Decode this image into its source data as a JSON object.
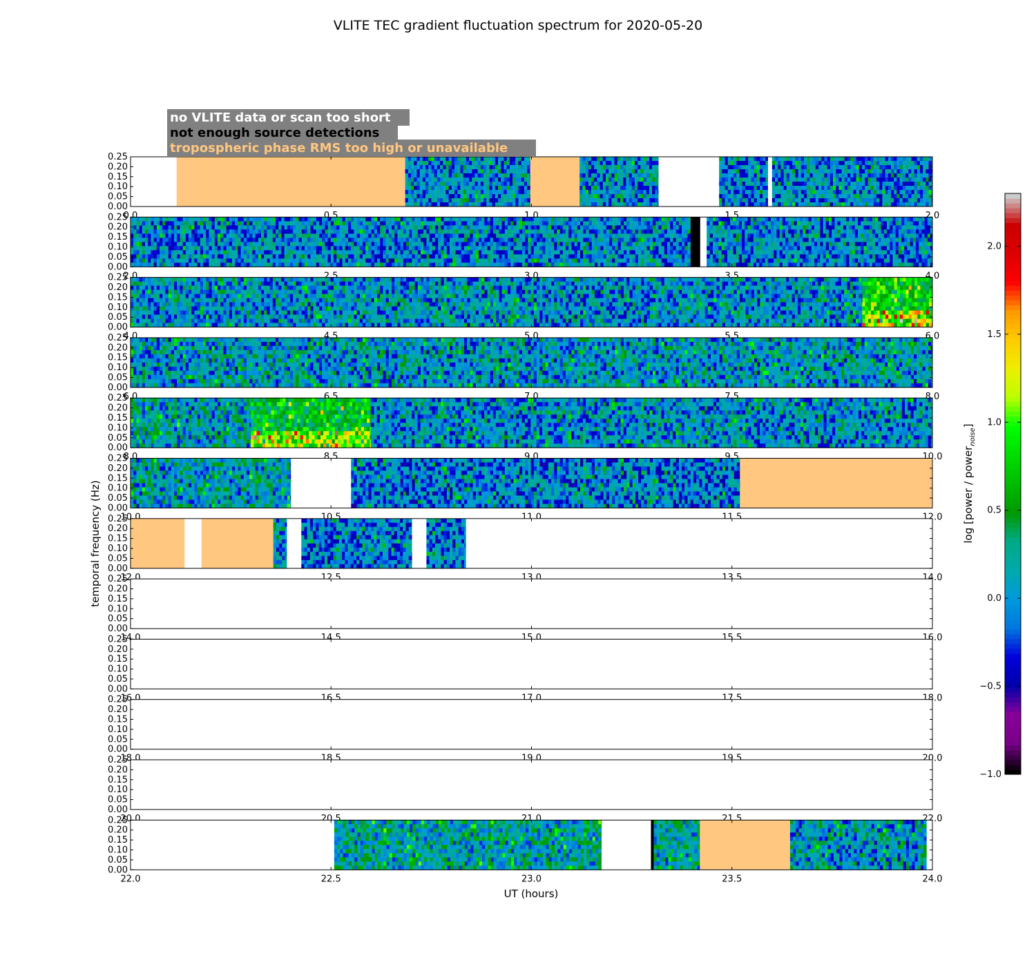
{
  "chart_data": {
    "type": "heatmap",
    "title": "VLITE TEC gradient fluctuation spectrum for 2020-05-20",
    "xlabel": "UT (hours)",
    "ylabel": "temporal frequency (Hz)",
    "ylim": [
      0,
      0.25
    ],
    "yticks": [
      "0.00",
      "0.05",
      "0.10",
      "0.15",
      "0.20",
      "0.25"
    ],
    "colorbar": {
      "label": "log [power / power",
      "label_subscript": "noise",
      "label_close": "]",
      "range": [
        -1.0,
        2.3
      ],
      "ticks": [
        "−1.0",
        "−0.5",
        "0.0",
        "0.5",
        "1.0",
        "1.5",
        "2.0"
      ],
      "tick_values": [
        -1.0,
        -0.5,
        0.0,
        0.5,
        1.0,
        1.5,
        2.0
      ],
      "colormap": "nipy_spectral"
    },
    "legend": [
      {
        "text": "no VLITE data or scan too short",
        "color": "#ffffff",
        "meaning": "white"
      },
      {
        "text": "not enough source detections",
        "color": "#000000",
        "meaning": "black"
      },
      {
        "text": "tropospheric phase RMS too high or unavailable",
        "color": "#ffc780",
        "meaning": "orange"
      }
    ],
    "colors": {
      "legend_bg": "#808080",
      "tropo": "#ffc780",
      "nodet": "#000000",
      "nodata": "#ffffff"
    },
    "panels": [
      {
        "xlim": [
          0,
          2
        ],
        "xticks": [
          "0.0",
          "0.5",
          "1.0",
          "1.5",
          "2.0"
        ],
        "segments": [
          {
            "start": 0.0,
            "end": 0.115,
            "kind": "nodata"
          },
          {
            "start": 0.115,
            "end": 0.685,
            "kind": "tropo"
          },
          {
            "start": 0.685,
            "end": 0.997,
            "kind": "data",
            "level": 0.15
          },
          {
            "start": 0.997,
            "end": 1.12,
            "kind": "tropo"
          },
          {
            "start": 1.12,
            "end": 1.317,
            "kind": "data",
            "level": 0.15
          },
          {
            "start": 1.317,
            "end": 1.468,
            "kind": "nodata"
          },
          {
            "start": 1.468,
            "end": 1.59,
            "kind": "data",
            "level": 0.15
          },
          {
            "start": 1.59,
            "end": 1.6,
            "kind": "nodata"
          },
          {
            "start": 1.6,
            "end": 2.0,
            "kind": "data",
            "level": 0.15
          }
        ]
      },
      {
        "xlim": [
          2,
          4
        ],
        "xticks": [
          "2.0",
          "2.5",
          "3.0",
          "3.5",
          "4.0"
        ],
        "segments": [
          {
            "start": 2.0,
            "end": 3.397,
            "kind": "data",
            "level": 0.15
          },
          {
            "start": 3.397,
            "end": 3.421,
            "kind": "nodet"
          },
          {
            "start": 3.421,
            "end": 3.437,
            "kind": "nodata"
          },
          {
            "start": 3.437,
            "end": 3.445,
            "kind": "data",
            "level": 0.15
          },
          {
            "start": 3.445,
            "end": 4.0,
            "kind": "data",
            "level": 0.15
          }
        ]
      },
      {
        "xlim": [
          4,
          6
        ],
        "xticks": [
          "4.0",
          "4.5",
          "5.0",
          "5.5",
          "6.0"
        ],
        "segments": [
          {
            "start": 4.0,
            "end": 5.825,
            "kind": "data",
            "level": 0.2
          },
          {
            "start": 5.825,
            "end": 6.0,
            "kind": "data",
            "level": 0.9,
            "hot": true
          }
        ]
      },
      {
        "xlim": [
          6,
          8
        ],
        "xticks": [
          "6.0",
          "6.5",
          "7.0",
          "7.5",
          "8.0"
        ],
        "segments": [
          {
            "start": 6.0,
            "end": 8.0,
            "kind": "data",
            "level": 0.25
          }
        ]
      },
      {
        "xlim": [
          8,
          10
        ],
        "xticks": [
          "8.0",
          "8.5",
          "9.0",
          "9.5",
          "10.0"
        ],
        "segments": [
          {
            "start": 8.0,
            "end": 8.3,
            "kind": "data",
            "level": 0.3
          },
          {
            "start": 8.3,
            "end": 8.6,
            "kind": "data",
            "level": 0.8,
            "hot": true
          },
          {
            "start": 8.6,
            "end": 10.0,
            "kind": "data",
            "level": 0.2
          }
        ]
      },
      {
        "xlim": [
          10,
          12
        ],
        "xticks": [
          "10.0",
          "10.5",
          "11.0",
          "11.5",
          "12.0"
        ],
        "segments": [
          {
            "start": 10.0,
            "end": 10.4,
            "kind": "data",
            "level": 0.3
          },
          {
            "start": 10.4,
            "end": 10.55,
            "kind": "nodata"
          },
          {
            "start": 10.55,
            "end": 11.52,
            "kind": "data",
            "level": 0.1
          },
          {
            "start": 11.52,
            "end": 12.0,
            "kind": "tropo"
          }
        ]
      },
      {
        "xlim": [
          12,
          14
        ],
        "xticks": [
          "12.0",
          "12.5",
          "13.0",
          "13.5",
          "14.0"
        ],
        "segments": [
          {
            "start": 12.0,
            "end": 12.135,
            "kind": "tropo"
          },
          {
            "start": 12.135,
            "end": 12.177,
            "kind": "nodata"
          },
          {
            "start": 12.177,
            "end": 12.356,
            "kind": "tropo"
          },
          {
            "start": 12.356,
            "end": 12.39,
            "kind": "data",
            "level": 0.25
          },
          {
            "start": 12.39,
            "end": 12.426,
            "kind": "nodata"
          },
          {
            "start": 12.426,
            "end": 12.702,
            "kind": "data",
            "level": 0.1
          },
          {
            "start": 12.702,
            "end": 12.738,
            "kind": "nodata"
          },
          {
            "start": 12.738,
            "end": 12.836,
            "kind": "data",
            "level": 0.1
          }
        ]
      },
      {
        "xlim": [
          14,
          16
        ],
        "xticks": [
          "14.0",
          "14.5",
          "15.0",
          "15.5",
          "16.0"
        ],
        "segments": []
      },
      {
        "xlim": [
          16,
          18
        ],
        "xticks": [
          "16.0",
          "16.5",
          "17.0",
          "17.5",
          "18.0"
        ],
        "segments": []
      },
      {
        "xlim": [
          18,
          20
        ],
        "xticks": [
          "18.0",
          "18.5",
          "19.0",
          "19.5",
          "20.0"
        ],
        "segments": []
      },
      {
        "xlim": [
          20,
          22
        ],
        "xticks": [
          "20.0",
          "20.5",
          "21.0",
          "21.5",
          "22.0"
        ],
        "segments": []
      },
      {
        "xlim": [
          22,
          24
        ],
        "xticks": [
          "22.0",
          "22.5",
          "23.0",
          "23.5",
          "24.0"
        ],
        "segments": [
          {
            "start": 22.508,
            "end": 23.175,
            "kind": "data",
            "level": 0.35
          },
          {
            "start": 23.175,
            "end": 23.298,
            "kind": "nodata"
          },
          {
            "start": 23.298,
            "end": 23.305,
            "kind": "nodet"
          },
          {
            "start": 23.305,
            "end": 23.42,
            "kind": "data",
            "level": 0.35
          },
          {
            "start": 23.42,
            "end": 23.645,
            "kind": "tropo"
          },
          {
            "start": 23.645,
            "end": 23.985,
            "kind": "data",
            "level": 0.25
          }
        ]
      }
    ]
  }
}
